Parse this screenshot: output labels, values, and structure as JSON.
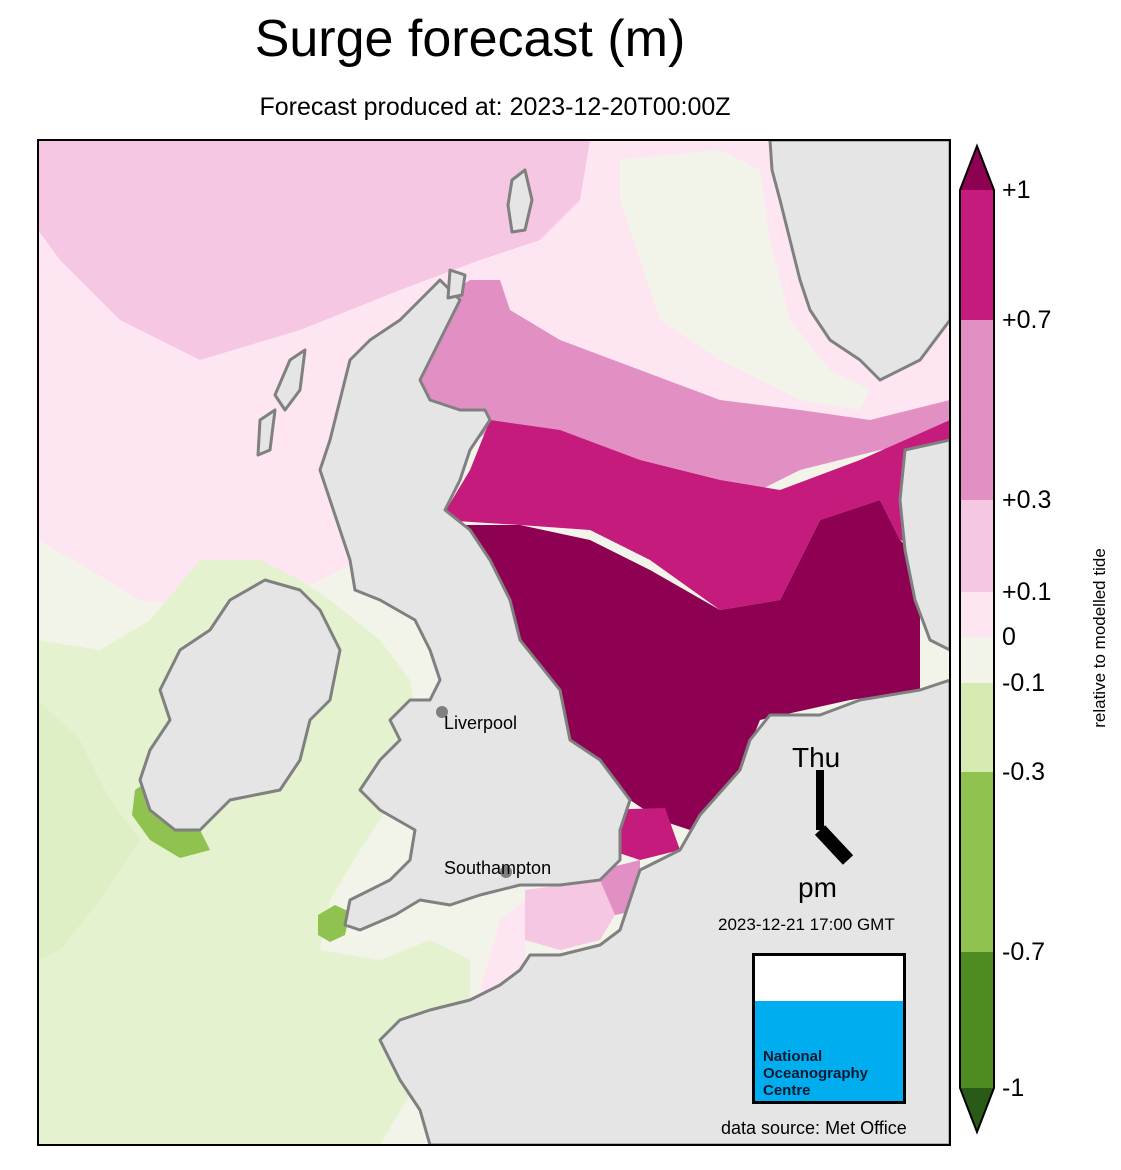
{
  "title": "Surge forecast (m)",
  "subtitle": "Forecast produced at: 2023-12-20T00:00Z",
  "colorbar": {
    "labels": [
      "+1",
      "+0.7",
      "+0.3",
      "+0.1",
      "0",
      "-0.1",
      "-0.3",
      "-0.7",
      "-1"
    ],
    "axis_label": "relative to modelled tide",
    "colors": {
      "over_max": "#8e0152",
      "p07_p1": "#c51b7d",
      "p03_p07": "#e290c4",
      "p01_p03": "#f5c7e2",
      "z_p01": "#fde6f2",
      "m01_z": "#f2f4ea",
      "m03_m01": "#d5ebb1",
      "m07_m03": "#8fc24e",
      "m1_m07": "#4e8c21",
      "under_min": "#2a5a17"
    }
  },
  "map": {
    "cities": [
      "Liverpool",
      "Southampton"
    ],
    "land_color": "#e5e5e5",
    "coast_color": "#808080"
  },
  "clock": {
    "day": "Thu",
    "period": "pm",
    "valid_time": "2023-12-21 17:00 GMT"
  },
  "logo": {
    "line1": "National",
    "line2": "Oceanography",
    "line3": "Centre",
    "color": "#00aeef"
  },
  "source": "data source: Met Office"
}
